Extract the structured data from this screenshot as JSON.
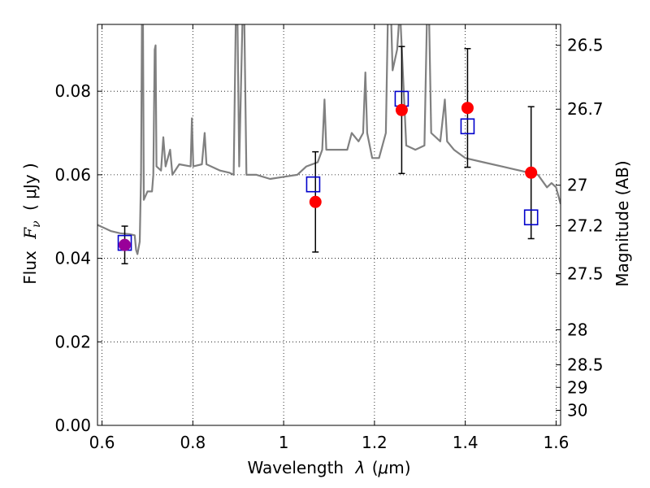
{
  "chart_data": {
    "type": "scatter",
    "xlabel_text": "Wavelength",
    "xlabel_symbol": "λ",
    "xlabel_unit_open": "(",
    "xlabel_unit_mu": "μ",
    "xlabel_unit_rest": "m)",
    "ylabel_text": "Flux",
    "ylabel_symbol": "F",
    "ylabel_symbol_sub": "ν",
    "ylabel_unit": "( μJy )",
    "y2label": "Magnitude (AB)",
    "xlim": [
      0.59,
      1.61
    ],
    "ylim": [
      0.0,
      0.096
    ],
    "grid": true,
    "x_ticks": [
      {
        "value": 0.6,
        "label": "0.6"
      },
      {
        "value": 0.8,
        "label": "0.8"
      },
      {
        "value": 1.0,
        "label": "1"
      },
      {
        "value": 1.2,
        "label": "1.2"
      },
      {
        "value": 1.4,
        "label": "1.4"
      },
      {
        "value": 1.6,
        "label": "1.6"
      }
    ],
    "y_ticks": [
      {
        "value": 0.0,
        "label": "0.00"
      },
      {
        "value": 0.02,
        "label": "0.02"
      },
      {
        "value": 0.04,
        "label": "0.04"
      },
      {
        "value": 0.06,
        "label": "0.06"
      },
      {
        "value": 0.08,
        "label": "0.08"
      }
    ],
    "y2_ticks": [
      {
        "flux": 0.091,
        "label": "26.5"
      },
      {
        "flux": 0.0757,
        "label": "26.7"
      },
      {
        "flux": 0.0575,
        "label": "27"
      },
      {
        "flux": 0.0478,
        "label": "27.2"
      },
      {
        "flux": 0.0363,
        "label": "27.5"
      },
      {
        "flux": 0.0229,
        "label": "28"
      },
      {
        "flux": 0.0145,
        "label": "28.5"
      },
      {
        "flux": 0.0091,
        "label": "29"
      },
      {
        "flux": 0.0036,
        "label": "30"
      }
    ],
    "series": [
      {
        "kind": "observed",
        "color": "#ff0000",
        "points": [
          {
            "x": 1.07,
            "y": 0.0535,
            "err": 0.012
          },
          {
            "x": 1.26,
            "y": 0.0755,
            "err": 0.0152
          },
          {
            "x": 1.405,
            "y": 0.076,
            "err": 0.0142
          },
          {
            "x": 1.545,
            "y": 0.0605,
            "err": 0.0158
          }
        ]
      },
      {
        "kind": "observed-blended",
        "color": "#990099",
        "points": [
          {
            "x": 0.65,
            "y": 0.0432,
            "err": 0.0045
          }
        ]
      },
      {
        "kind": "model-synthetic",
        "color": "#0000cc",
        "points": [
          {
            "x": 0.65,
            "y": 0.0437
          },
          {
            "x": 1.065,
            "y": 0.0577
          },
          {
            "x": 1.26,
            "y": 0.0782
          },
          {
            "x": 1.405,
            "y": 0.0716
          },
          {
            "x": 1.545,
            "y": 0.0498
          }
        ]
      },
      {
        "kind": "model-spectrum",
        "color": "#808080",
        "points": [
          [
            0.59,
            0.048
          ],
          [
            0.62,
            0.0465
          ],
          [
            0.64,
            0.046
          ],
          [
            0.66,
            0.0458
          ],
          [
            0.672,
            0.0455
          ],
          [
            0.675,
            0.042
          ],
          [
            0.678,
            0.041
          ],
          [
            0.683,
            0.044
          ],
          [
            0.686,
            0.06
          ],
          [
            0.688,
            0.1
          ],
          [
            0.69,
            0.1
          ],
          [
            0.692,
            0.054
          ],
          [
            0.7,
            0.056
          ],
          [
            0.71,
            0.056
          ],
          [
            0.713,
            0.06
          ],
          [
            0.716,
            0.09
          ],
          [
            0.718,
            0.091
          ],
          [
            0.72,
            0.062
          ],
          [
            0.73,
            0.061
          ],
          [
            0.735,
            0.069
          ],
          [
            0.74,
            0.062
          ],
          [
            0.75,
            0.066
          ],
          [
            0.755,
            0.06
          ],
          [
            0.77,
            0.0625
          ],
          [
            0.795,
            0.062
          ],
          [
            0.798,
            0.0735
          ],
          [
            0.801,
            0.062
          ],
          [
            0.82,
            0.0625
          ],
          [
            0.826,
            0.07
          ],
          [
            0.83,
            0.0625
          ],
          [
            0.86,
            0.061
          ],
          [
            0.88,
            0.0605
          ],
          [
            0.89,
            0.06
          ],
          [
            0.895,
            0.1
          ],
          [
            0.898,
            0.1
          ],
          [
            0.902,
            0.062
          ],
          [
            0.91,
            0.1
          ],
          [
            0.913,
            0.1
          ],
          [
            0.918,
            0.06
          ],
          [
            0.94,
            0.06
          ],
          [
            0.97,
            0.059
          ],
          [
            1.0,
            0.0595
          ],
          [
            1.03,
            0.06
          ],
          [
            1.05,
            0.062
          ],
          [
            1.075,
            0.063
          ],
          [
            1.085,
            0.066
          ],
          [
            1.09,
            0.078
          ],
          [
            1.094,
            0.066
          ],
          [
            1.11,
            0.066
          ],
          [
            1.14,
            0.066
          ],
          [
            1.15,
            0.07
          ],
          [
            1.165,
            0.068
          ],
          [
            1.175,
            0.07
          ],
          [
            1.18,
            0.0845
          ],
          [
            1.184,
            0.07
          ],
          [
            1.195,
            0.064
          ],
          [
            1.21,
            0.064
          ],
          [
            1.225,
            0.07
          ],
          [
            1.23,
            0.1
          ],
          [
            1.236,
            0.1
          ],
          [
            1.24,
            0.085
          ],
          [
            1.25,
            0.09
          ],
          [
            1.256,
            0.1
          ],
          [
            1.27,
            0.067
          ],
          [
            1.29,
            0.066
          ],
          [
            1.31,
            0.067
          ],
          [
            1.316,
            0.1
          ],
          [
            1.32,
            0.1
          ],
          [
            1.325,
            0.07
          ],
          [
            1.345,
            0.068
          ],
          [
            1.355,
            0.078
          ],
          [
            1.36,
            0.068
          ],
          [
            1.375,
            0.066
          ],
          [
            1.4,
            0.064
          ],
          [
            1.44,
            0.063
          ],
          [
            1.48,
            0.062
          ],
          [
            1.52,
            0.061
          ],
          [
            1.56,
            0.06
          ],
          [
            1.58,
            0.057
          ],
          [
            1.59,
            0.058
          ],
          [
            1.6,
            0.057
          ],
          [
            1.61,
            0.053
          ]
        ]
      }
    ]
  }
}
